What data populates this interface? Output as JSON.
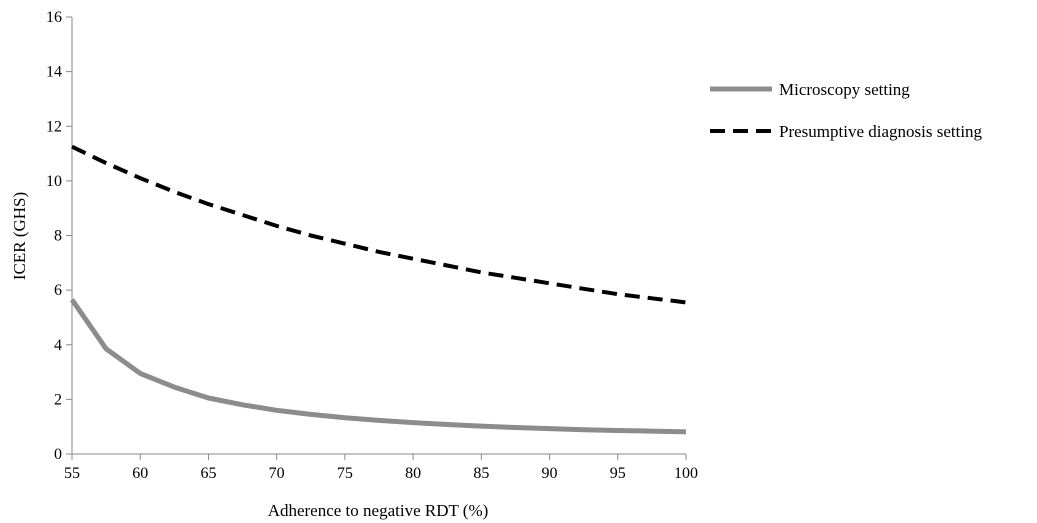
{
  "chart_data": {
    "type": "line",
    "xlabel": "Adherence to negative RDT (%)",
    "ylabel": "ICER (GHS)",
    "xlim": [
      55,
      100
    ],
    "ylim": [
      0,
      16
    ],
    "x_ticks": [
      55,
      60,
      65,
      70,
      75,
      80,
      85,
      90,
      95,
      100
    ],
    "y_ticks": [
      0,
      2,
      4,
      6,
      8,
      10,
      12,
      14,
      16
    ],
    "grid": false,
    "legend_position": "right",
    "series": [
      {
        "name": "Microscopy setting",
        "color": "#8c8c8c",
        "style": "solid",
        "x": [
          55,
          57.5,
          60,
          62.5,
          65,
          67.5,
          70,
          72.5,
          75,
          77.5,
          80,
          82.5,
          85,
          87.5,
          90,
          92.5,
          95,
          97.5,
          100
        ],
        "y": [
          5.65,
          3.85,
          2.95,
          2.45,
          2.05,
          1.8,
          1.6,
          1.45,
          1.33,
          1.23,
          1.15,
          1.08,
          1.02,
          0.97,
          0.93,
          0.89,
          0.86,
          0.84,
          0.81
        ]
      },
      {
        "name": "Presumptive diagnosis setting",
        "color": "#000000",
        "style": "dashed",
        "x": [
          55,
          57.5,
          60,
          62.5,
          65,
          67.5,
          70,
          72.5,
          75,
          77.5,
          80,
          82.5,
          85,
          87.5,
          90,
          92.5,
          95,
          97.5,
          100
        ],
        "y": [
          11.25,
          10.65,
          10.1,
          9.6,
          9.15,
          8.75,
          8.35,
          8.0,
          7.7,
          7.4,
          7.15,
          6.9,
          6.65,
          6.45,
          6.25,
          6.05,
          5.85,
          5.7,
          5.55
        ]
      }
    ]
  }
}
